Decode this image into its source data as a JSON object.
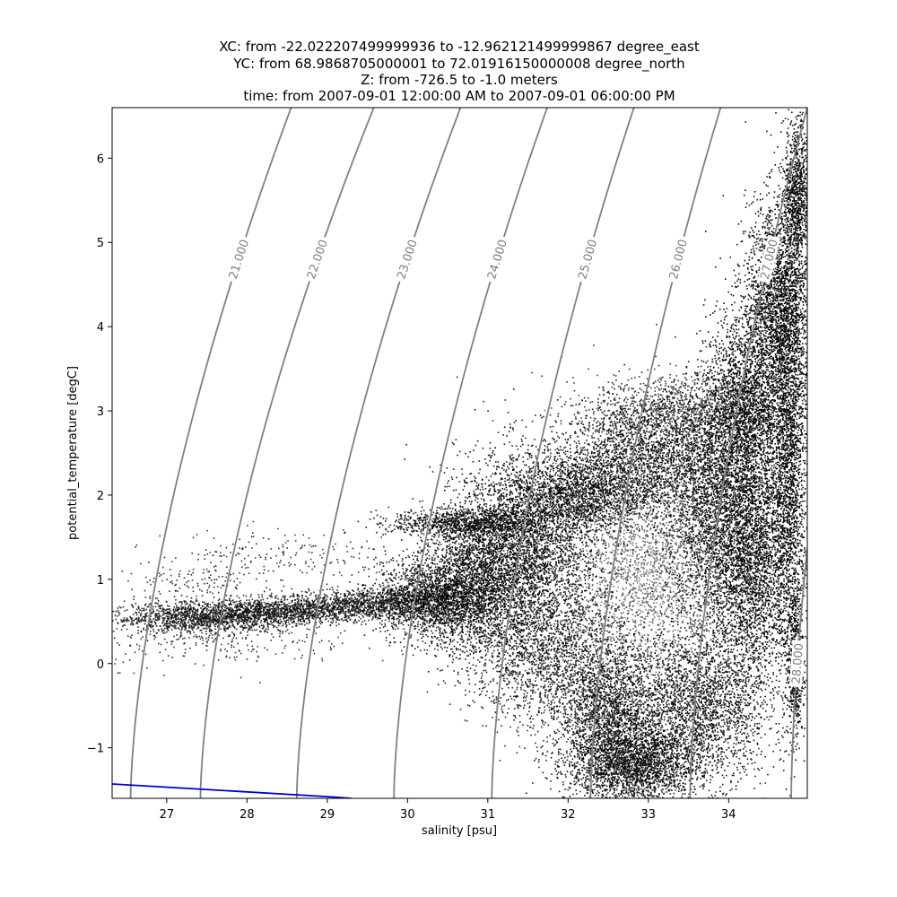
{
  "chart_data": {
    "type": "scatter",
    "title_lines": [
      "XC: from -22.022207499999936 to -12.962121499999867 degree_east",
      "YC: from 68.9868705000001 to 72.01916150000008 degree_north",
      "Z: from -726.5 to -1.0 meters",
      "time: from 2007-09-01 12:00:00 AM to 2007-09-01 06:00:00 PM"
    ],
    "xlabel": "salinity [psu]",
    "ylabel": "potential_temperature [degC]",
    "xlim": [
      26.32,
      34.98
    ],
    "ylim": [
      -1.6,
      6.6
    ],
    "xticks": [
      27,
      28,
      29,
      30,
      31,
      32,
      33,
      34
    ],
    "xtick_labels": [
      "27",
      "28",
      "29",
      "30",
      "31",
      "32",
      "33",
      "34"
    ],
    "yticks": [
      -1,
      0,
      1,
      2,
      3,
      4,
      5,
      6
    ],
    "ytick_labels": [
      "−1",
      "0",
      "1",
      "2",
      "3",
      "4",
      "5",
      "6"
    ],
    "grid": false,
    "point_color": "#000000",
    "density_contours": {
      "color": "#808080",
      "levels": [
        21,
        22,
        23,
        24,
        25,
        26,
        27,
        28
      ],
      "labels": [
        "21.000",
        "22.000",
        "23.000",
        "24.000",
        "25.000",
        "26.000",
        "27.000",
        "28.000"
      ],
      "bottom_s": [
        26.55,
        27.42,
        28.62,
        29.83,
        31.05,
        32.28,
        33.52,
        34.78
      ],
      "top_s": [
        28.55,
        29.58,
        30.66,
        31.74,
        32.82,
        33.9,
        34.98,
        35.8
      ],
      "label_t": [
        4.8,
        4.8,
        4.8,
        4.8,
        4.8,
        4.8,
        4.8,
        0.0
      ]
    },
    "freezing_line": {
      "color": "#0000cc",
      "points": [
        [
          26.32,
          -1.43
        ],
        [
          29.0,
          -1.58
        ],
        [
          29.3,
          -1.6
        ]
      ]
    },
    "clusters": [
      {
        "cx": 27.4,
        "cy": 0.55,
        "sx": 0.55,
        "sy": 0.09,
        "n": 1300,
        "a": 0.85
      },
      {
        "cx": 28.4,
        "cy": 0.62,
        "sx": 0.55,
        "sy": 0.08,
        "n": 1100,
        "a": 0.85
      },
      {
        "cx": 29.5,
        "cy": 0.72,
        "sx": 0.5,
        "sy": 0.09,
        "n": 1100,
        "a": 0.85
      },
      {
        "cx": 30.3,
        "cy": 0.78,
        "sx": 0.35,
        "sy": 0.22,
        "n": 1700,
        "a": 0.9
      },
      {
        "cx": 30.9,
        "cy": 1.0,
        "sx": 0.4,
        "sy": 0.45,
        "n": 2600,
        "a": 0.9
      },
      {
        "cx": 30.7,
        "cy": 1.68,
        "sx": 0.45,
        "sy": 0.08,
        "n": 900,
        "a": 0.9
      },
      {
        "cx": 31.5,
        "cy": 1.45,
        "sx": 0.45,
        "sy": 0.55,
        "n": 3000,
        "a": 0.9
      },
      {
        "cx": 31.8,
        "cy": 0.1,
        "sx": 0.5,
        "sy": 0.45,
        "n": 2000,
        "a": 0.85
      },
      {
        "cx": 32.1,
        "cy": 2.0,
        "sx": 0.4,
        "sy": 0.22,
        "n": 1400,
        "a": 0.9
      },
      {
        "cx": 32.5,
        "cy": -0.6,
        "sx": 0.3,
        "sy": 0.4,
        "n": 1800,
        "a": 0.9
      },
      {
        "cx": 32.8,
        "cy": -1.2,
        "sx": 0.4,
        "sy": 0.22,
        "n": 2200,
        "a": 0.9
      },
      {
        "cx": 32.9,
        "cy": 2.4,
        "sx": 0.5,
        "sy": 0.35,
        "n": 2200,
        "a": 0.9
      },
      {
        "cx": 33.0,
        "cy": 1.1,
        "sx": 0.55,
        "sy": 0.6,
        "n": 2200,
        "a": 0.55
      },
      {
        "cx": 33.4,
        "cy": 3.0,
        "sx": 0.55,
        "sy": 0.22,
        "n": 1300,
        "a": 0.8
      },
      {
        "cx": 33.6,
        "cy": -0.5,
        "sx": 0.45,
        "sy": 0.45,
        "n": 2600,
        "a": 0.9
      },
      {
        "cx": 33.8,
        "cy": 1.8,
        "sx": 0.3,
        "sy": 0.7,
        "n": 2400,
        "a": 0.9
      },
      {
        "cx": 34.2,
        "cy": 3.0,
        "sx": 0.25,
        "sy": 0.6,
        "n": 2400,
        "a": 0.95
      },
      {
        "cx": 34.3,
        "cy": 1.2,
        "sx": 0.25,
        "sy": 0.7,
        "n": 2600,
        "a": 0.95
      },
      {
        "cx": 34.6,
        "cy": 4.3,
        "sx": 0.2,
        "sy": 0.6,
        "n": 2200,
        "a": 0.95
      },
      {
        "cx": 34.75,
        "cy": 2.5,
        "sx": 0.12,
        "sy": 1.2,
        "n": 2400,
        "a": 0.95
      },
      {
        "cx": 34.85,
        "cy": 5.6,
        "sx": 0.08,
        "sy": 0.45,
        "n": 900,
        "a": 0.95
      },
      {
        "cx": 34.82,
        "cy": 0.0,
        "sx": 0.05,
        "sy": 0.45,
        "n": 500,
        "a": 0.95
      },
      {
        "cx": 28.4,
        "cy": 1.3,
        "sx": 0.75,
        "sy": 0.16,
        "n": 200,
        "a": 0.8
      },
      {
        "cx": 27.6,
        "cy": 0.25,
        "sx": 0.9,
        "sy": 0.15,
        "n": 250,
        "a": 0.8
      },
      {
        "cx": 27.3,
        "cy": 0.95,
        "sx": 0.5,
        "sy": 0.12,
        "n": 120,
        "a": 0.8
      }
    ]
  }
}
